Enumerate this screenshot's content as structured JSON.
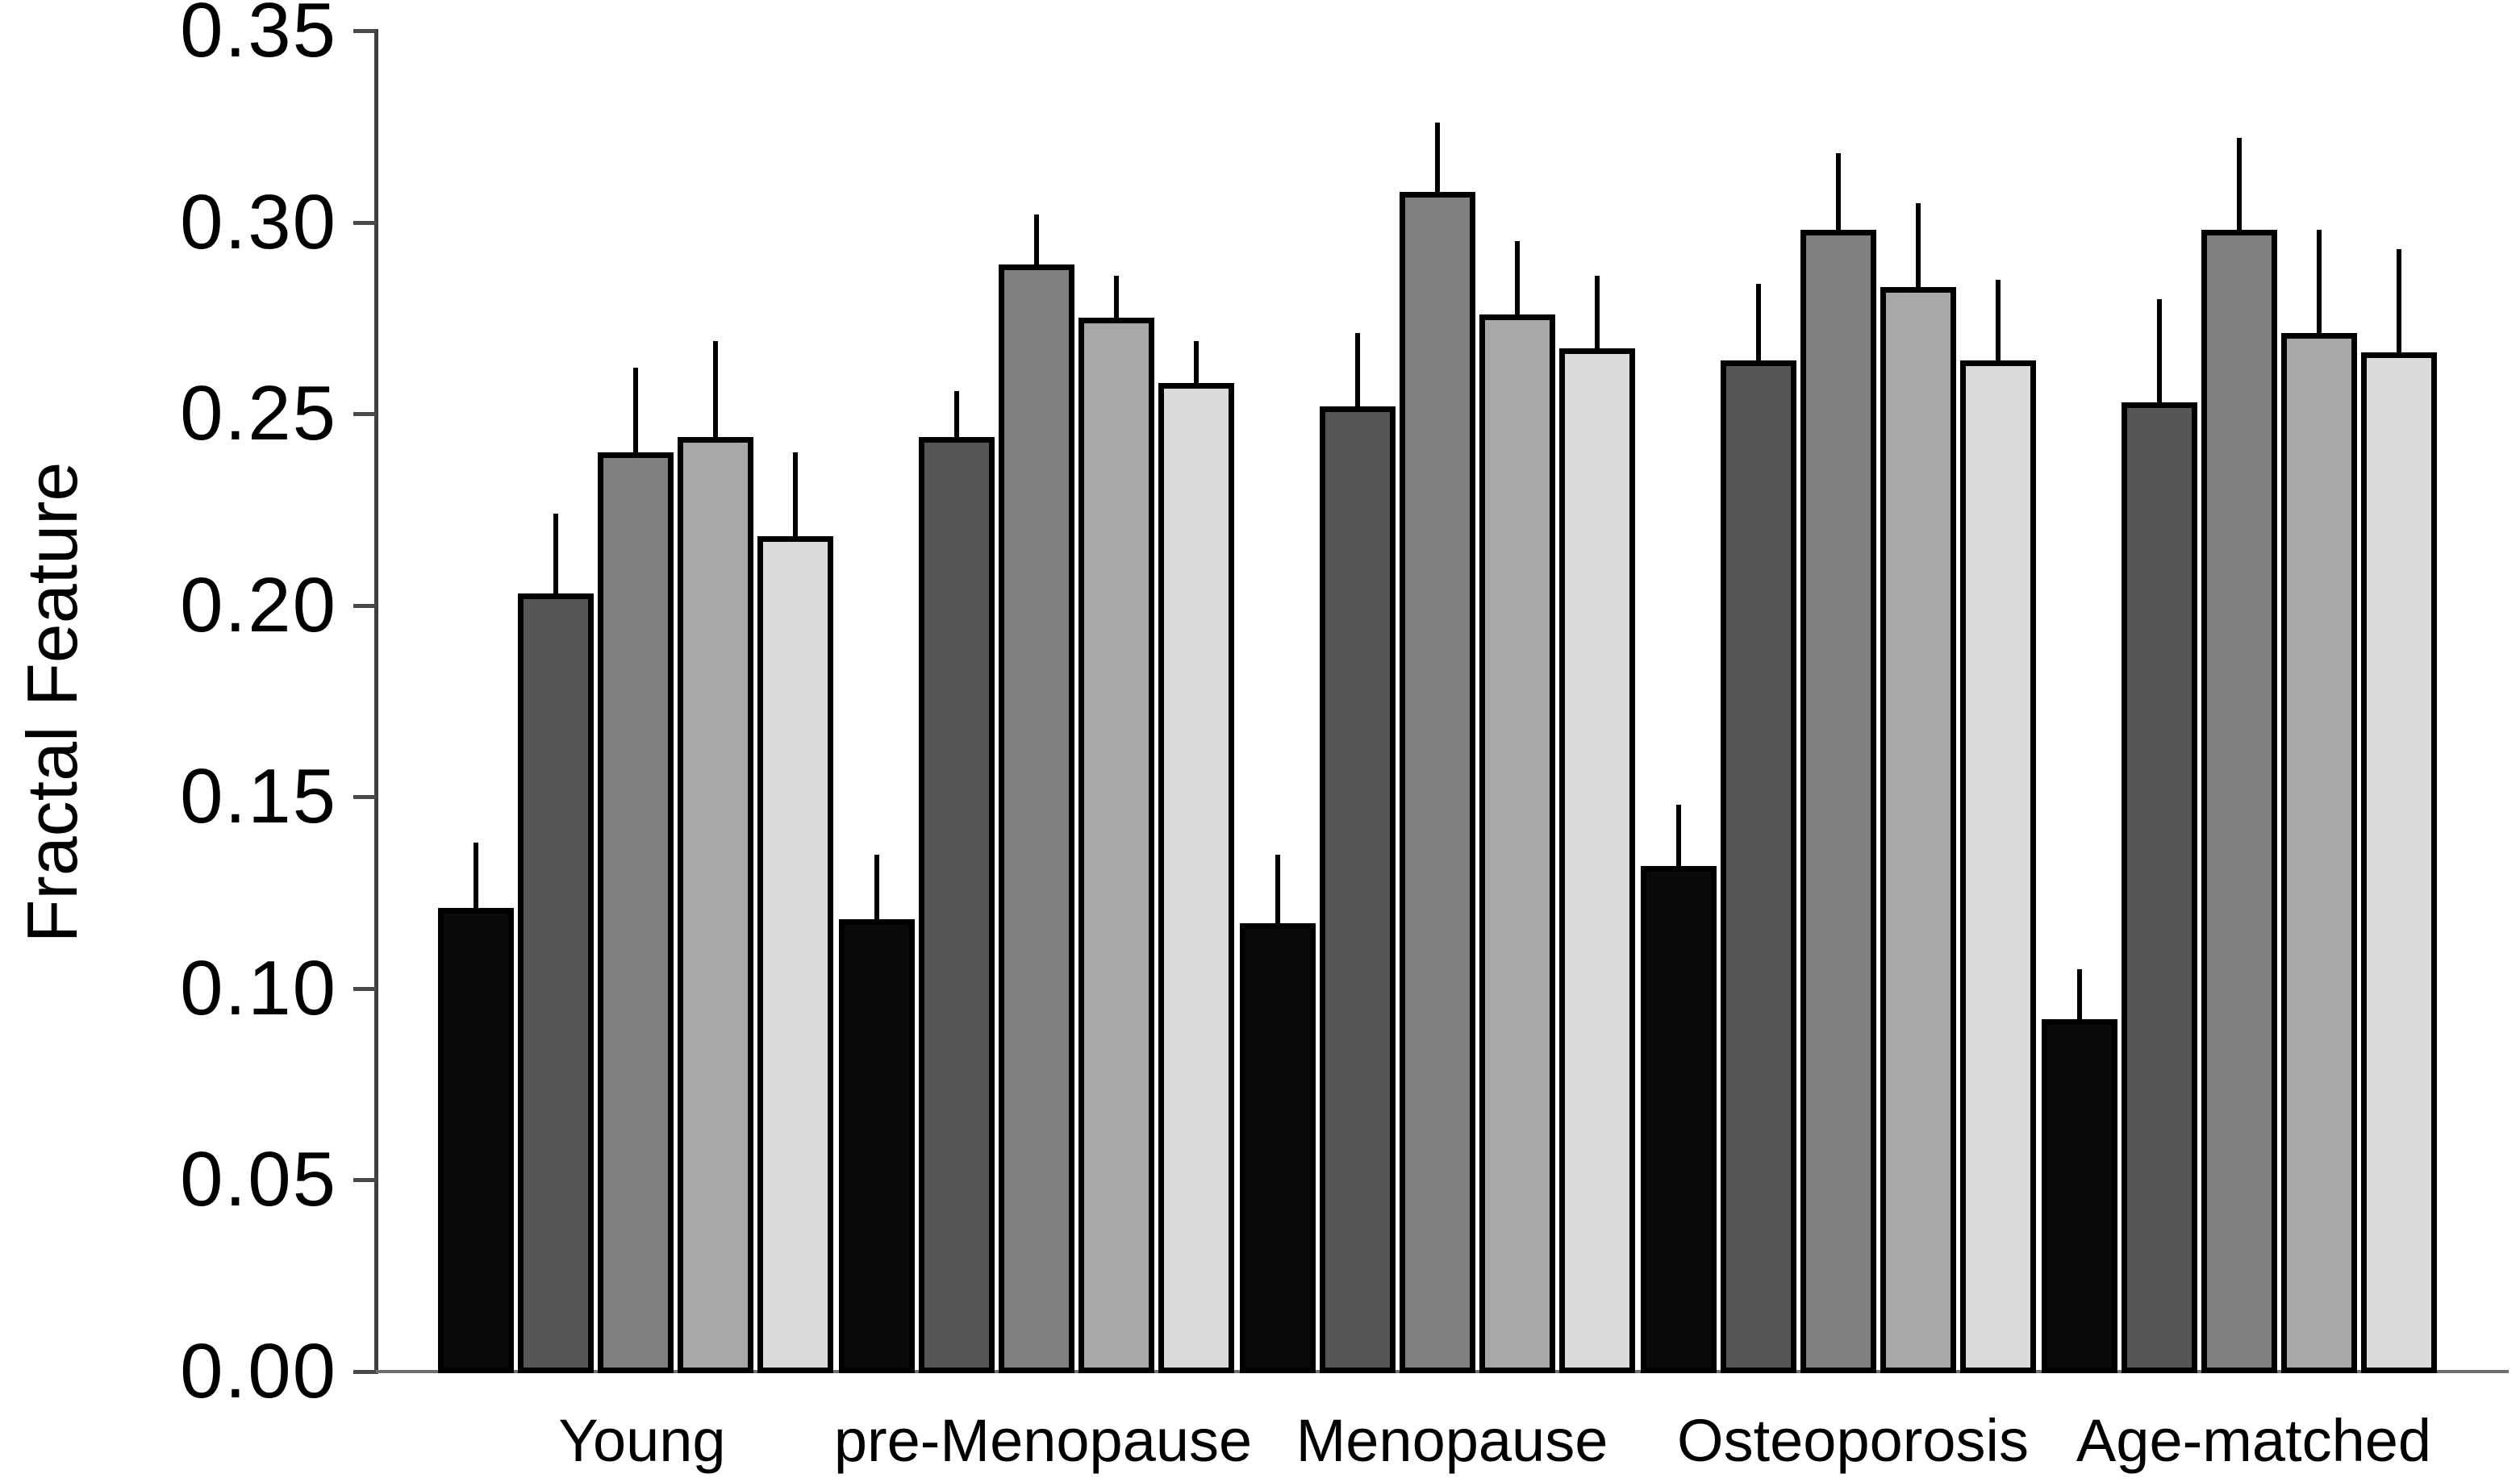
{
  "chart_data": {
    "type": "bar",
    "title": "",
    "xlabel": "",
    "ylabel": "Fractal Feature",
    "ylim": [
      0,
      0.35
    ],
    "ytick_values": [
      0.0,
      0.05,
      0.1,
      0.15,
      0.2,
      0.25,
      0.3,
      0.35
    ],
    "ytick_labels": [
      "0.00",
      "0.05",
      "0.10",
      "0.15",
      "0.20",
      "0.25",
      "0.30",
      "0.35"
    ],
    "categories": [
      "Young",
      "pre-Menopause",
      "Menopause",
      "Osteoporosis",
      "Age-matched"
    ],
    "grid": false,
    "legend_position": "none",
    "error_bars": "upper-only, no caps",
    "bar_outline_color": "#000000",
    "series": [
      {
        "name": "black",
        "color": "#0a0a0a",
        "values": [
          0.121,
          0.118,
          0.117,
          0.132,
          0.092
        ],
        "errors": [
          0.017,
          0.017,
          0.018,
          0.016,
          0.013
        ]
      },
      {
        "name": "dark-gray",
        "color": "#565656",
        "values": [
          0.203,
          0.244,
          0.252,
          0.264,
          0.253
        ],
        "errors": [
          0.021,
          0.012,
          0.019,
          0.02,
          0.027
        ]
      },
      {
        "name": "medium-gray",
        "color": "#808080",
        "values": [
          0.24,
          0.289,
          0.308,
          0.298,
          0.298
        ],
        "errors": [
          0.022,
          0.013,
          0.018,
          0.02,
          0.024
        ]
      },
      {
        "name": "light-gray",
        "color": "#a8a8a8",
        "values": [
          0.244,
          0.275,
          0.276,
          0.283,
          0.271
        ],
        "errors": [
          0.025,
          0.011,
          0.019,
          0.022,
          0.027
        ]
      },
      {
        "name": "lightest-gray",
        "color": "#dadada",
        "values": [
          0.218,
          0.258,
          0.267,
          0.264,
          0.266
        ],
        "errors": [
          0.022,
          0.011,
          0.019,
          0.021,
          0.027
        ]
      }
    ]
  }
}
